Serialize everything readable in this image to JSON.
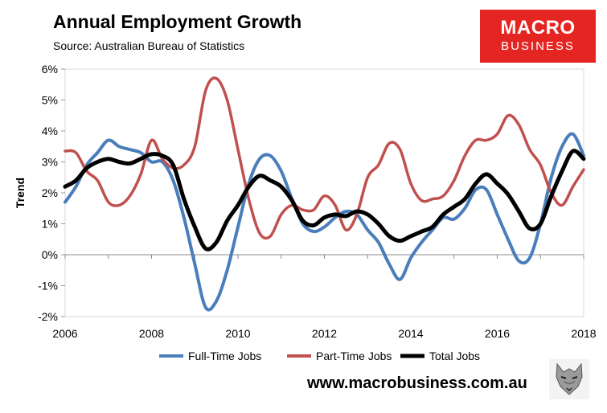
{
  "header": {
    "title": "Annual Employment Growth",
    "source": "Source: Australian Bureau of Statistics"
  },
  "logo": {
    "line1": "MACRO",
    "line2": "BUSINESS"
  },
  "footer": {
    "url": "www.macrobusiness.com.au",
    "icon": "wolf-logo-icon"
  },
  "colors": {
    "full_time": "#4a7ebb",
    "part_time": "#c0504d",
    "total": "#000000"
  },
  "chart_data": {
    "type": "line",
    "title": "Annual Employment Growth",
    "xlabel": "",
    "ylabel": "Trend",
    "xlim": [
      2006,
      2018
    ],
    "ylim": [
      -2,
      6
    ],
    "xticks": [
      "2006",
      "2008",
      "2010",
      "2012",
      "2014",
      "2016",
      "2018"
    ],
    "yticks": [
      "-2%",
      "-1%",
      "0%",
      "1%",
      "2%",
      "3%",
      "4%",
      "5%",
      "6%"
    ],
    "legend": [
      "Full-Time Jobs",
      "Part-Time Jobs",
      "Total Jobs"
    ],
    "legend_position": "bottom",
    "series": [
      {
        "name": "Full-Time Jobs",
        "color": "#4a7ebb",
        "points": [
          [
            2006.0,
            1.7
          ],
          [
            2006.25,
            2.2
          ],
          [
            2006.5,
            2.9
          ],
          [
            2006.75,
            3.3
          ],
          [
            2007.0,
            3.7
          ],
          [
            2007.25,
            3.5
          ],
          [
            2007.5,
            3.4
          ],
          [
            2007.75,
            3.3
          ],
          [
            2008.0,
            3.0
          ],
          [
            2008.25,
            3.0
          ],
          [
            2008.5,
            2.4
          ],
          [
            2008.75,
            1.2
          ],
          [
            2009.0,
            -0.3
          ],
          [
            2009.25,
            -1.7
          ],
          [
            2009.5,
            -1.5
          ],
          [
            2009.75,
            -0.5
          ],
          [
            2010.0,
            0.9
          ],
          [
            2010.25,
            2.3
          ],
          [
            2010.5,
            3.1
          ],
          [
            2010.75,
            3.2
          ],
          [
            2011.0,
            2.7
          ],
          [
            2011.25,
            1.8
          ],
          [
            2011.5,
            1.0
          ],
          [
            2011.75,
            0.75
          ],
          [
            2012.0,
            0.9
          ],
          [
            2012.25,
            1.2
          ],
          [
            2012.5,
            1.4
          ],
          [
            2012.75,
            1.3
          ],
          [
            2013.0,
            0.8
          ],
          [
            2013.25,
            0.4
          ],
          [
            2013.5,
            -0.3
          ],
          [
            2013.75,
            -0.8
          ],
          [
            2014.0,
            -0.1
          ],
          [
            2014.25,
            0.4
          ],
          [
            2014.5,
            0.8
          ],
          [
            2014.75,
            1.2
          ],
          [
            2015.0,
            1.15
          ],
          [
            2015.25,
            1.5
          ],
          [
            2015.5,
            2.1
          ],
          [
            2015.75,
            2.1
          ],
          [
            2016.0,
            1.3
          ],
          [
            2016.25,
            0.5
          ],
          [
            2016.5,
            -0.2
          ],
          [
            2016.75,
            -0.1
          ],
          [
            2017.0,
            1.0
          ],
          [
            2017.25,
            2.5
          ],
          [
            2017.5,
            3.5
          ],
          [
            2017.75,
            3.9
          ],
          [
            2018.0,
            3.2
          ]
        ]
      },
      {
        "name": "Part-Time Jobs",
        "color": "#c0504d",
        "points": [
          [
            2006.0,
            3.35
          ],
          [
            2006.25,
            3.3
          ],
          [
            2006.5,
            2.7
          ],
          [
            2006.75,
            2.4
          ],
          [
            2007.0,
            1.7
          ],
          [
            2007.25,
            1.6
          ],
          [
            2007.5,
            1.9
          ],
          [
            2007.75,
            2.6
          ],
          [
            2008.0,
            3.7
          ],
          [
            2008.25,
            3.1
          ],
          [
            2008.5,
            2.8
          ],
          [
            2008.75,
            2.9
          ],
          [
            2009.0,
            3.5
          ],
          [
            2009.25,
            5.3
          ],
          [
            2009.5,
            5.7
          ],
          [
            2009.75,
            5.0
          ],
          [
            2010.0,
            3.4
          ],
          [
            2010.25,
            1.8
          ],
          [
            2010.5,
            0.7
          ],
          [
            2010.75,
            0.6
          ],
          [
            2011.0,
            1.3
          ],
          [
            2011.25,
            1.6
          ],
          [
            2011.5,
            1.45
          ],
          [
            2011.75,
            1.45
          ],
          [
            2012.0,
            1.9
          ],
          [
            2012.25,
            1.6
          ],
          [
            2012.5,
            0.8
          ],
          [
            2012.75,
            1.3
          ],
          [
            2013.0,
            2.5
          ],
          [
            2013.25,
            2.9
          ],
          [
            2013.5,
            3.6
          ],
          [
            2013.75,
            3.4
          ],
          [
            2014.0,
            2.3
          ],
          [
            2014.25,
            1.75
          ],
          [
            2014.5,
            1.8
          ],
          [
            2014.75,
            1.9
          ],
          [
            2015.0,
            2.4
          ],
          [
            2015.25,
            3.2
          ],
          [
            2015.5,
            3.7
          ],
          [
            2015.75,
            3.7
          ],
          [
            2016.0,
            3.9
          ],
          [
            2016.25,
            4.5
          ],
          [
            2016.5,
            4.2
          ],
          [
            2016.75,
            3.4
          ],
          [
            2017.0,
            2.9
          ],
          [
            2017.25,
            2.0
          ],
          [
            2017.5,
            1.6
          ],
          [
            2017.75,
            2.2
          ],
          [
            2018.0,
            2.75
          ]
        ]
      },
      {
        "name": "Total Jobs",
        "color": "#000000",
        "points": [
          [
            2006.0,
            2.2
          ],
          [
            2006.25,
            2.4
          ],
          [
            2006.5,
            2.8
          ],
          [
            2006.75,
            3.0
          ],
          [
            2007.0,
            3.1
          ],
          [
            2007.25,
            3.0
          ],
          [
            2007.5,
            2.95
          ],
          [
            2007.75,
            3.1
          ],
          [
            2008.0,
            3.25
          ],
          [
            2008.25,
            3.2
          ],
          [
            2008.5,
            2.9
          ],
          [
            2008.75,
            1.8
          ],
          [
            2009.0,
            0.9
          ],
          [
            2009.25,
            0.2
          ],
          [
            2009.5,
            0.4
          ],
          [
            2009.75,
            1.1
          ],
          [
            2010.0,
            1.6
          ],
          [
            2010.25,
            2.2
          ],
          [
            2010.5,
            2.55
          ],
          [
            2010.75,
            2.4
          ],
          [
            2011.0,
            2.2
          ],
          [
            2011.25,
            1.75
          ],
          [
            2011.5,
            1.1
          ],
          [
            2011.75,
            0.95
          ],
          [
            2012.0,
            1.2
          ],
          [
            2012.25,
            1.3
          ],
          [
            2012.5,
            1.25
          ],
          [
            2012.75,
            1.4
          ],
          [
            2013.0,
            1.3
          ],
          [
            2013.25,
            1.0
          ],
          [
            2013.5,
            0.6
          ],
          [
            2013.75,
            0.45
          ],
          [
            2014.0,
            0.6
          ],
          [
            2014.25,
            0.75
          ],
          [
            2014.5,
            0.9
          ],
          [
            2014.75,
            1.3
          ],
          [
            2015.0,
            1.55
          ],
          [
            2015.25,
            1.8
          ],
          [
            2015.5,
            2.3
          ],
          [
            2015.75,
            2.6
          ],
          [
            2016.0,
            2.3
          ],
          [
            2016.25,
            1.95
          ],
          [
            2016.5,
            1.4
          ],
          [
            2016.75,
            0.85
          ],
          [
            2017.0,
            1.0
          ],
          [
            2017.25,
            1.9
          ],
          [
            2017.5,
            2.7
          ],
          [
            2017.75,
            3.35
          ],
          [
            2018.0,
            3.1
          ]
        ]
      }
    ]
  }
}
